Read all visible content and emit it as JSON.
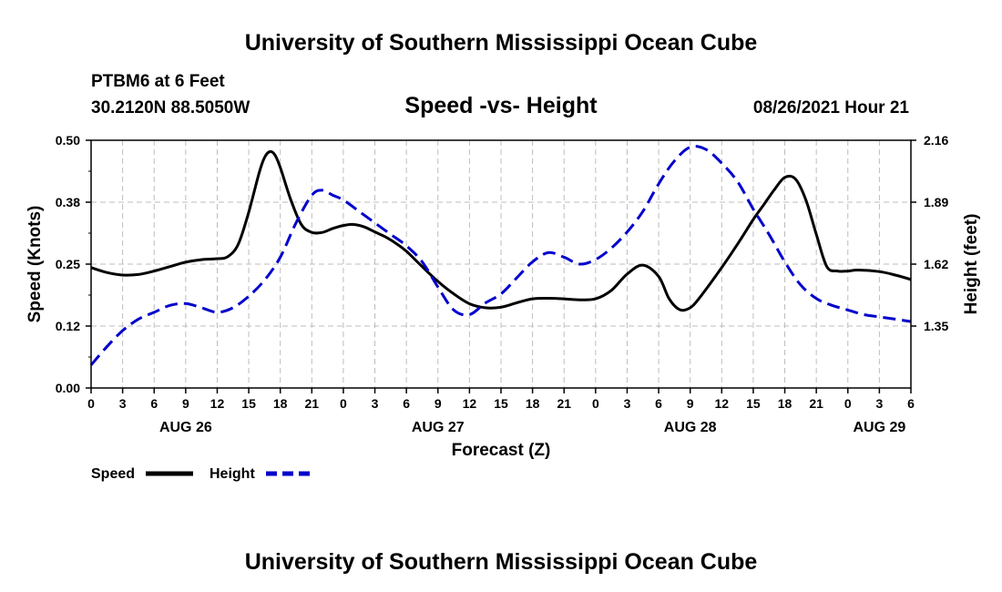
{
  "header": {
    "title": "University of Southern Mississippi Ocean Cube",
    "station": "PTBM6 at 6 Feet",
    "coords": "30.2120N  88.5050W",
    "chart_title": "Speed -vs- Height",
    "timestamp": "08/26/2021 Hour 21",
    "footer_title": "University of Southern Mississippi Ocean Cube"
  },
  "legend": {
    "speed_label": "Speed",
    "height_label": "Height"
  },
  "colors": {
    "speed": "#000000",
    "height": "#0000cc",
    "grid": "#bdbdbd"
  },
  "chart_data": {
    "type": "line",
    "title": "Speed -vs- Height",
    "xlabel": "Forecast (Z)",
    "ylabel": "Speed (Knots)",
    "y2label": "Height (feet)",
    "x_unit": "hours since AUG 26 00Z",
    "xlim": [
      0,
      78
    ],
    "ylim": [
      0,
      0.5
    ],
    "y2lim": [
      1.08,
      2.16
    ],
    "y_ticks": [
      "0.00",
      "0.12",
      "0.25",
      "0.38",
      "0.50"
    ],
    "y2_ticks": [
      "1.35",
      "1.62",
      "1.89",
      "2.16"
    ],
    "x_tick_labels": [
      "0",
      "3",
      "6",
      "9",
      "12",
      "15",
      "18",
      "21",
      "0",
      "3",
      "6",
      "9",
      "12",
      "15",
      "18",
      "21",
      "0",
      "3",
      "6",
      "9",
      "12",
      "15",
      "18",
      "21",
      "0",
      "3",
      "6"
    ],
    "date_labels": [
      {
        "hour": 9,
        "text": "AUG 26"
      },
      {
        "hour": 33,
        "text": "AUG 27"
      },
      {
        "hour": 57,
        "text": "AUG 28"
      },
      {
        "hour": 75,
        "text": "AUG 29"
      }
    ],
    "series": [
      {
        "name": "Speed",
        "axis": "left",
        "style": "solid",
        "x": [
          0,
          1.5,
          3,
          4.5,
          6,
          7.5,
          9,
          10.5,
          12,
          13,
          14,
          15,
          16,
          16.5,
          17,
          17.5,
          18,
          19,
          20,
          21,
          22,
          23,
          24,
          25,
          26,
          27,
          28,
          29,
          30,
          31.5,
          33,
          34.5,
          36,
          37.5,
          39,
          40.5,
          42,
          43.5,
          45,
          46.5,
          48,
          49.5,
          51,
          52.5,
          54,
          55,
          56,
          57,
          58,
          60,
          61.5,
          63,
          64,
          65,
          66,
          67,
          68,
          69,
          70,
          71,
          72,
          73,
          75,
          76.5,
          78
        ],
        "values": [
          0.243,
          0.233,
          0.228,
          0.229,
          0.236,
          0.245,
          0.254,
          0.259,
          0.261,
          0.265,
          0.29,
          0.355,
          0.435,
          0.465,
          0.477,
          0.47,
          0.445,
          0.38,
          0.33,
          0.314,
          0.314,
          0.322,
          0.328,
          0.33,
          0.325,
          0.315,
          0.305,
          0.292,
          0.276,
          0.245,
          0.215,
          0.19,
          0.17,
          0.162,
          0.163,
          0.172,
          0.18,
          0.181,
          0.18,
          0.178,
          0.18,
          0.197,
          0.23,
          0.248,
          0.225,
          0.18,
          0.158,
          0.162,
          0.185,
          0.243,
          0.29,
          0.34,
          0.37,
          0.4,
          0.425,
          0.422,
          0.38,
          0.31,
          0.245,
          0.236,
          0.236,
          0.238,
          0.235,
          0.228,
          0.219
        ]
      },
      {
        "name": "Height",
        "axis": "right",
        "style": "dashed",
        "x": [
          0,
          1.5,
          3,
          4.5,
          6,
          7.5,
          9,
          10.5,
          12,
          13.5,
          15,
          16.5,
          18,
          19.5,
          21,
          22,
          23,
          24,
          25.5,
          27,
          28.5,
          30,
          31.5,
          33,
          34.5,
          36,
          37.5,
          39,
          40.5,
          42,
          43.5,
          45,
          46.5,
          48,
          49.5,
          51,
          52.5,
          54,
          55.5,
          57,
          58.5,
          60,
          61.5,
          63,
          64.5,
          66,
          67.5,
          69,
          70.5,
          72,
          73.5,
          75,
          76.5,
          78
        ],
        "values": [
          1.18,
          1.26,
          1.33,
          1.38,
          1.41,
          1.44,
          1.448,
          1.43,
          1.41,
          1.43,
          1.48,
          1.55,
          1.65,
          1.8,
          1.92,
          1.942,
          1.92,
          1.9,
          1.85,
          1.8,
          1.75,
          1.7,
          1.63,
          1.52,
          1.42,
          1.4,
          1.45,
          1.49,
          1.56,
          1.63,
          1.67,
          1.65,
          1.62,
          1.64,
          1.69,
          1.76,
          1.85,
          1.97,
          2.07,
          2.13,
          2.12,
          2.06,
          1.98,
          1.86,
          1.75,
          1.63,
          1.53,
          1.47,
          1.44,
          1.42,
          1.4,
          1.39,
          1.38,
          1.37
        ]
      }
    ]
  }
}
